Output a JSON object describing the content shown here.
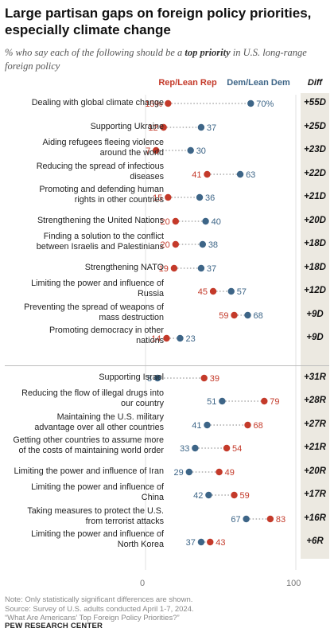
{
  "header": {
    "title_line1": "Large partisan gaps on foreign policy priorities,",
    "title_line2": "especially climate change",
    "subtitle_pre": "% who say each of the following should be a ",
    "subtitle_bold": "top priority",
    "subtitle_post": " in U.S. long-range foreign policy"
  },
  "legend": {
    "rep": "Rep/Lean Rep",
    "dem": "Dem/Lean Dem",
    "diff": "Diff"
  },
  "colors": {
    "rep": "#c43a2a",
    "dem": "#3d6587",
    "connector": "#9a9a9a",
    "diff_bg": "#ece9e1"
  },
  "chart_data": {
    "type": "dot",
    "xlim": [
      0,
      100
    ],
    "x_ticks": [
      "0",
      "100"
    ],
    "groups": [
      {
        "items": [
          {
            "label": [
              "Dealing with global climate change"
            ],
            "rep": 15,
            "dem": 70,
            "rep_label": "15%",
            "dem_label": "70%",
            "diff": "+55D"
          },
          {
            "label": [
              "Supporting Ukraine"
            ],
            "rep": 12,
            "dem": 37,
            "rep_label": "12",
            "dem_label": "37",
            "diff": "+25D"
          },
          {
            "label": [
              "Aiding refugees fleeing violence",
              "around the world"
            ],
            "rep": 7,
            "dem": 30,
            "rep_label": "7",
            "dem_label": "30",
            "diff": "+23D"
          },
          {
            "label": [
              "Reducing the spread of infectious",
              "diseases"
            ],
            "rep": 41,
            "dem": 63,
            "rep_label": "41",
            "dem_label": "63",
            "diff": "+22D"
          },
          {
            "label": [
              "Promoting and defending human",
              "rights in other countries"
            ],
            "rep": 15,
            "dem": 36,
            "rep_label": "15",
            "dem_label": "36",
            "diff": "+21D"
          },
          {
            "label": [
              "Strengthening the United Nations"
            ],
            "rep": 20,
            "dem": 40,
            "rep_label": "20",
            "dem_label": "40",
            "diff": "+20D"
          },
          {
            "label": [
              "Finding a solution to the conflict",
              "between Israelis and Palestinians"
            ],
            "rep": 20,
            "dem": 38,
            "rep_label": "20",
            "dem_label": "38",
            "diff": "+18D"
          },
          {
            "label": [
              "Strengthening NATO"
            ],
            "rep": 19,
            "dem": 37,
            "rep_label": "19",
            "dem_label": "37",
            "diff": "+18D"
          },
          {
            "label": [
              "Limiting the power and influence of",
              "Russia"
            ],
            "rep": 45,
            "dem": 57,
            "rep_label": "45",
            "dem_label": "57",
            "diff": "+12D"
          },
          {
            "label": [
              "Preventing the spread of weapons of",
              "mass destruction"
            ],
            "rep": 59,
            "dem": 68,
            "rep_label": "59",
            "dem_label": "68",
            "diff": "+9D"
          },
          {
            "label": [
              "Promoting democracy in other",
              "nations"
            ],
            "rep": 14,
            "dem": 23,
            "rep_label": "14",
            "dem_label": "23",
            "diff": "+9D"
          }
        ]
      },
      {
        "items": [
          {
            "label": [
              "Supporting Israel"
            ],
            "rep": 39,
            "dem": 8,
            "rep_label": "39",
            "dem_label": "8",
            "diff": "+31R"
          },
          {
            "label": [
              "Reducing the flow of illegal drugs into",
              "our country"
            ],
            "rep": 79,
            "dem": 51,
            "rep_label": "79",
            "dem_label": "51",
            "diff": "+28R"
          },
          {
            "label": [
              "Maintaining the U.S. military",
              "advantage over all other countries"
            ],
            "rep": 68,
            "dem": 41,
            "rep_label": "68",
            "dem_label": "41",
            "diff": "+27R"
          },
          {
            "label": [
              "Getting other countries to assume more",
              "of the costs of maintaining world order"
            ],
            "rep": 54,
            "dem": 33,
            "rep_label": "54",
            "dem_label": "33",
            "diff": "+21R"
          },
          {
            "label": [
              "Limiting the power and influence of Iran"
            ],
            "rep": 49,
            "dem": 29,
            "rep_label": "49",
            "dem_label": "29",
            "diff": "+20R"
          },
          {
            "label": [
              "Limiting the power and influence of",
              "China"
            ],
            "rep": 59,
            "dem": 42,
            "rep_label": "59",
            "dem_label": "42",
            "diff": "+17R"
          },
          {
            "label": [
              "Taking measures to protect the U.S.",
              "from terrorist attacks"
            ],
            "rep": 83,
            "dem": 67,
            "rep_label": "83",
            "dem_label": "67",
            "diff": "+16R"
          },
          {
            "label": [
              "Limiting the power and influence of",
              "North Korea"
            ],
            "rep": 43,
            "dem": 37,
            "rep_label": "43",
            "dem_label": "37",
            "diff": "+6R"
          }
        ]
      }
    ]
  },
  "footer": {
    "note1": "Note: Only statistically significant differences are shown.",
    "note2": "Source: Survey of U.S. adults conducted April 1-7, 2024.",
    "note3": "“What Are Americans’ Top Foreign Policy Priorities?”",
    "source": "PEW RESEARCH CENTER"
  }
}
